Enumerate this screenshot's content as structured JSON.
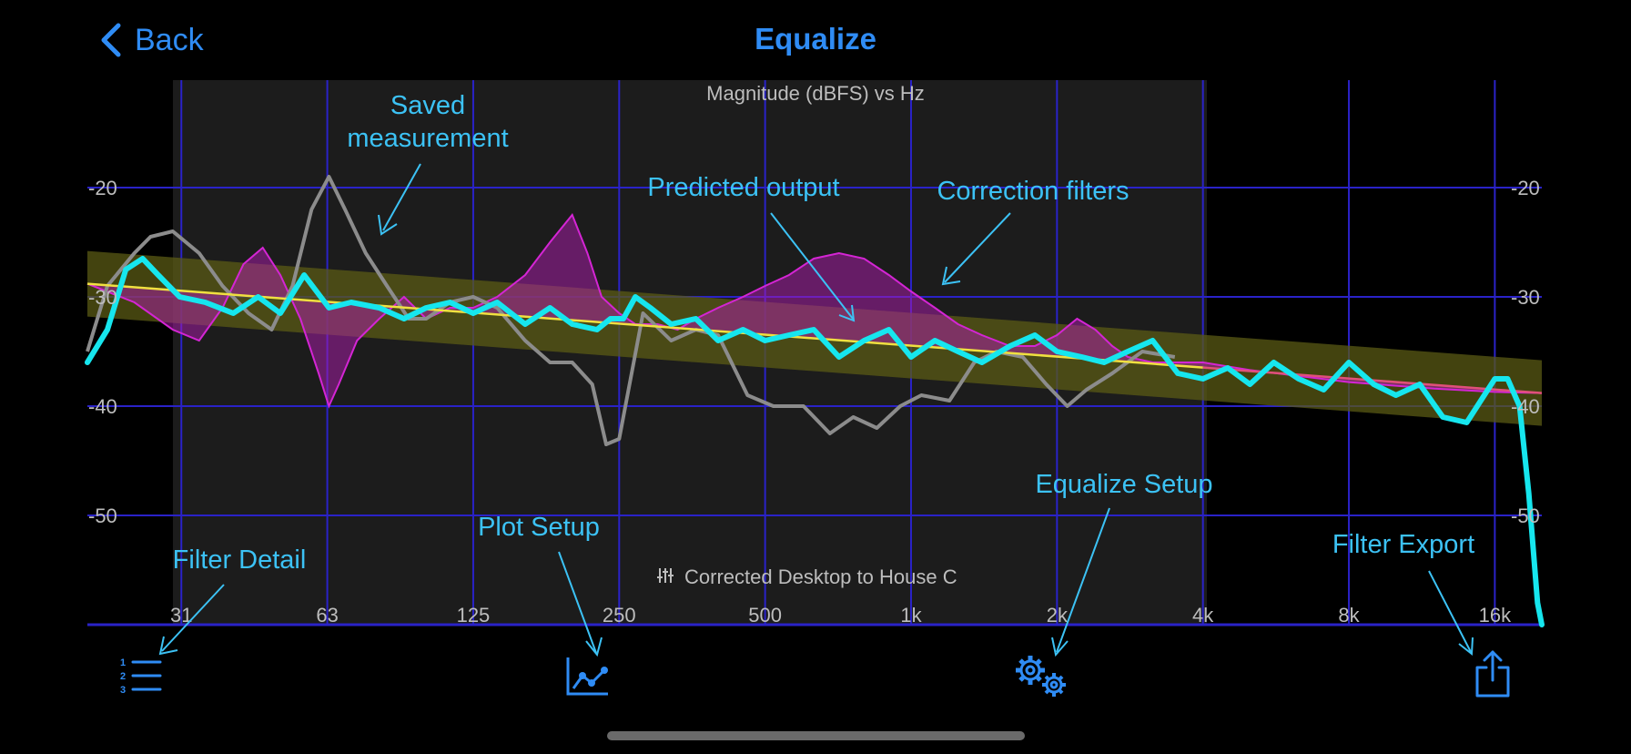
{
  "nav": {
    "back_label": "Back",
    "title": "Equalize"
  },
  "plot": {
    "title": "Magnitude (dBFS) vs Hz",
    "subtitle": "Corrected Desktop to House C",
    "y_ticks": [
      "-20",
      "-30",
      "-40",
      "-50"
    ],
    "x_ticks": [
      "31",
      "63",
      "125",
      "250",
      "500",
      "1k",
      "2k",
      "4k",
      "8k",
      "16k"
    ]
  },
  "annotations": {
    "saved_line1": "Saved",
    "saved_line2": "measurement",
    "predicted": "Predicted output",
    "correction": "Correction filters",
    "filter_detail": "Filter Detail",
    "plot_setup": "Plot Setup",
    "equalize_setup": "Equalize Setup",
    "filter_export": "Filter Export"
  },
  "toolbar": {
    "items": [
      {
        "icon": "numbered-list-icon"
      },
      {
        "icon": "chart-icon"
      },
      {
        "icon": "gears-icon"
      },
      {
        "icon": "share-icon"
      }
    ]
  },
  "colors": {
    "accent": "#2f8cf5",
    "annotation": "#3cc2f5",
    "grid": "#2a22c8",
    "predicted": "#16e6ee",
    "measurement": "#8c8c8c",
    "filters": "#c81ec8",
    "target": "#f0e040",
    "band": "#5a5a14"
  },
  "chart_data": {
    "type": "line",
    "title": "Magnitude (dBFS) vs Hz",
    "xlabel": "Hz",
    "ylabel": "Magnitude (dBFS)",
    "x_scale": "log",
    "xlim": [
      20,
      20000
    ],
    "ylim": [
      -60,
      -10
    ],
    "grid": true,
    "series": [
      {
        "name": "Saved measurement",
        "color": "#8c8c8c",
        "x": [
          20,
          22,
          25,
          27,
          30,
          34,
          38,
          43,
          48,
          53,
          58,
          63,
          68,
          75,
          83,
          92,
          100,
          112,
          125,
          140,
          160,
          180,
          200,
          220,
          235,
          250,
          280,
          320,
          360,
          400,
          460,
          520,
          600,
          680,
          760,
          850,
          950,
          1050,
          1200,
          1350,
          1500,
          1700,
          1900,
          2100,
          2300,
          2600,
          3000,
          3500
        ],
        "y": [
          -35,
          -29,
          -26,
          -24.5,
          -24,
          -26,
          -29,
          -31.5,
          -33,
          -29,
          -22,
          -19,
          -22,
          -26,
          -29,
          -32,
          -32,
          -30.5,
          -30,
          -31,
          -34,
          -36,
          -36,
          -38,
          -43.5,
          -43,
          -31.5,
          -34,
          -33,
          -33.5,
          -39,
          -40,
          -40,
          -42.5,
          -41,
          -42,
          -40,
          -39,
          -39.5,
          -36,
          -35,
          -35.5,
          -38,
          -40,
          -38.5,
          -37,
          -35,
          -35.5
        ]
      },
      {
        "name": "Predicted output",
        "color": "#16e6ee",
        "x": [
          20,
          22,
          24,
          26,
          28,
          31,
          35,
          40,
          45,
          50,
          56,
          63,
          70,
          80,
          90,
          100,
          112,
          125,
          140,
          160,
          180,
          200,
          225,
          240,
          255,
          270,
          290,
          320,
          360,
          400,
          450,
          500,
          560,
          630,
          710,
          800,
          900,
          1000,
          1120,
          1250,
          1400,
          1600,
          1800,
          2000,
          2250,
          2500,
          2800,
          3150,
          3550,
          4000,
          4500,
          5000,
          5600,
          6300,
          7100,
          8000,
          9000,
          10000,
          11200,
          12500,
          14000,
          16000,
          17000,
          18000,
          18800,
          19600,
          20000
        ],
        "y": [
          -36,
          -33,
          -27.5,
          -26.5,
          -28,
          -30,
          -30.5,
          -31.5,
          -30,
          -31.5,
          -28,
          -31,
          -30.5,
          -31,
          -32,
          -31,
          -30.5,
          -31.5,
          -30.5,
          -32.5,
          -31,
          -32.5,
          -33,
          -32,
          -32,
          -30,
          -31,
          -32.5,
          -32,
          -34,
          -33,
          -34,
          -33.5,
          -33,
          -35.5,
          -34,
          -33,
          -35.5,
          -34,
          -35,
          -36,
          -34.5,
          -33.5,
          -35,
          -35.5,
          -36,
          -35,
          -34,
          -37,
          -37.5,
          -36.5,
          -38,
          -36,
          -37.5,
          -38.5,
          -36,
          -38,
          -39,
          -38,
          -41,
          -41.5,
          -37.5,
          -37.5,
          -40,
          -48,
          -58,
          -60
        ]
      },
      {
        "name": "Target",
        "color": "#f0e040",
        "x": [
          20,
          20000
        ],
        "y": [
          -28.8,
          -38.8
        ]
      },
      {
        "name": "Correction filters",
        "color": "#c81ec8",
        "x": [
          20,
          25,
          30,
          34,
          38,
          42,
          46,
          50,
          55,
          60,
          63,
          66,
          72,
          80,
          90,
          100,
          112,
          125,
          140,
          160,
          180,
          200,
          215,
          230,
          250,
          270,
          300,
          330,
          360,
          400,
          450,
          500,
          560,
          630,
          710,
          800,
          900,
          1000,
          1120,
          1250,
          1400,
          1600,
          1800,
          2000,
          2200,
          2400,
          2600,
          2800,
          3150,
          3550,
          4000,
          5000,
          8000,
          12000,
          16000,
          20000
        ],
        "y": [
          -28.8,
          -30.5,
          -33,
          -34,
          -31,
          -27,
          -25.5,
          -28,
          -32,
          -37,
          -40,
          -38,
          -34,
          -32,
          -30,
          -32,
          -31,
          -31,
          -30,
          -28,
          -25,
          -22.5,
          -26,
          -30,
          -31.5,
          -32.5,
          -32.5,
          -33,
          -32,
          -31,
          -30,
          -29,
          -28,
          -26.5,
          -26,
          -26.5,
          -28,
          -29.5,
          -31,
          -32.5,
          -33.5,
          -34.5,
          -34.5,
          -33.5,
          -32,
          -33,
          -34.5,
          -35.5,
          -36,
          -36,
          -36,
          -36.7,
          -37.8,
          -38.4,
          -38.7,
          -38.8
        ]
      }
    ]
  }
}
